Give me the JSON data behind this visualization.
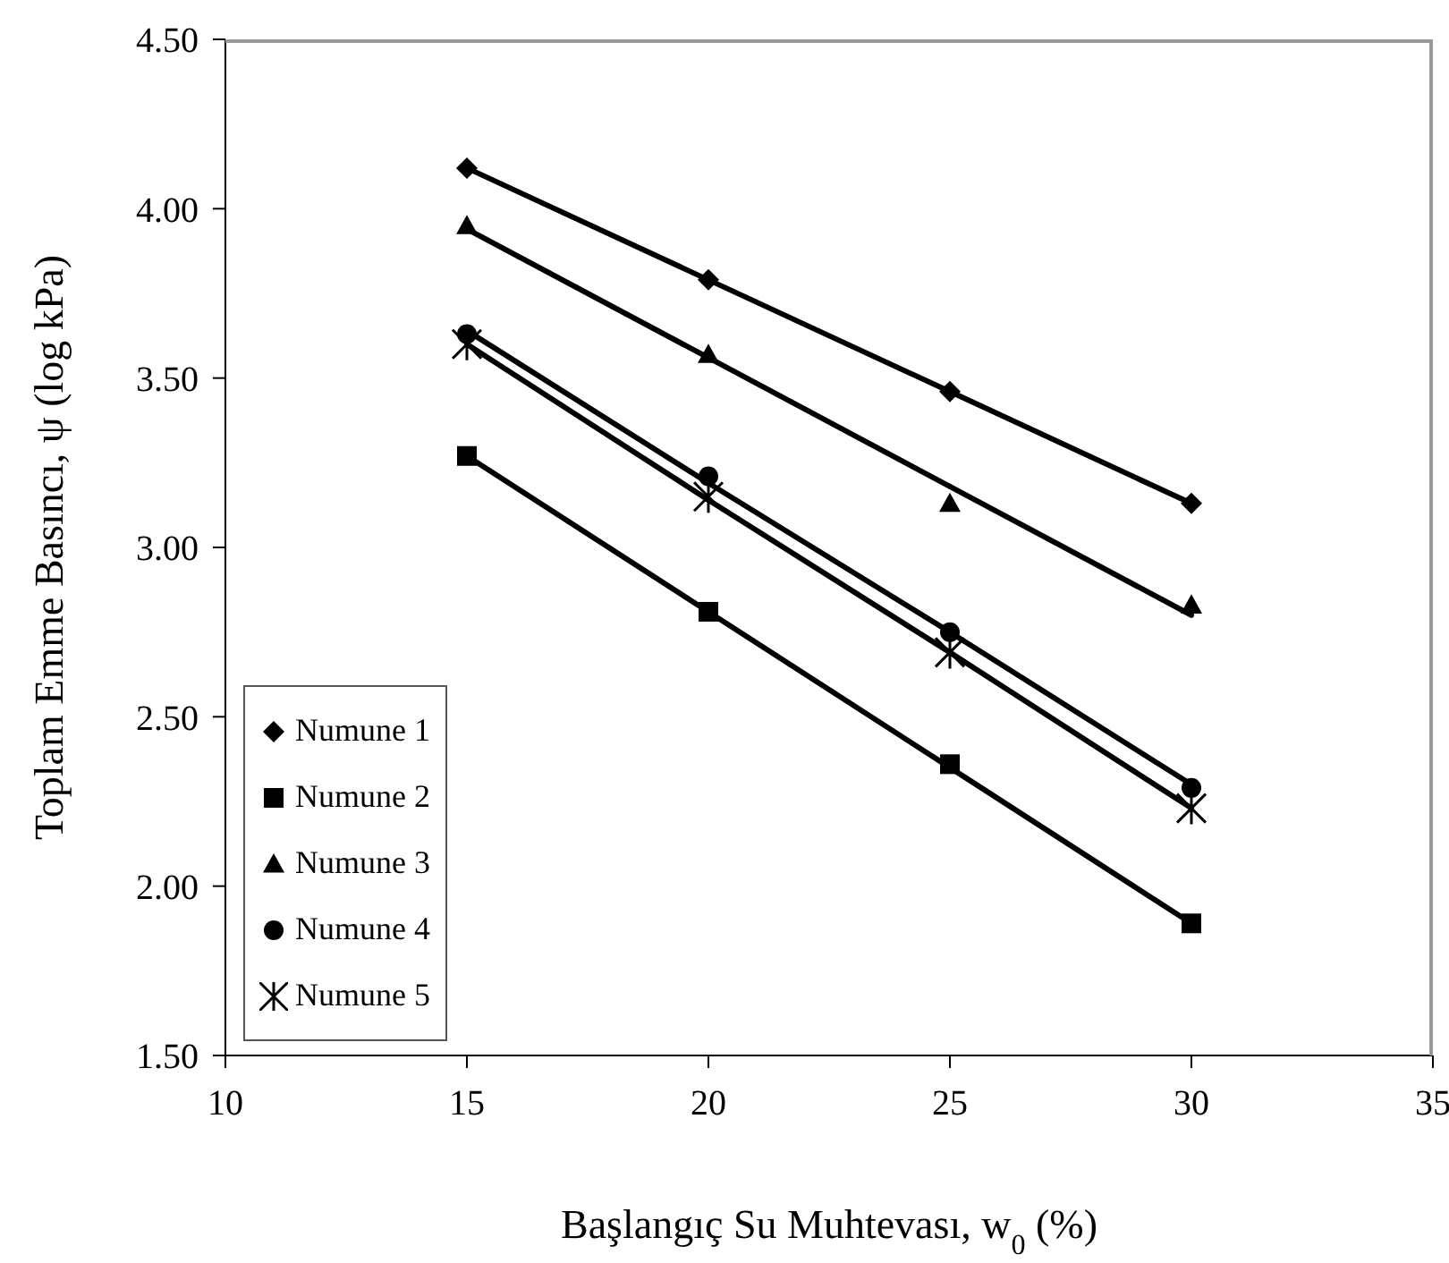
{
  "chart_data": {
    "type": "scatter",
    "xlabel": "Başlangıç Su Muhtevası, w$_{0}$ (%)",
    "ylabel": "Toplam Emme Basıncı,  ψ  (log kPa)",
    "x": [
      15,
      20,
      25,
      30
    ],
    "xlim": [
      10,
      35
    ],
    "xticks": [
      10,
      15,
      20,
      25,
      30,
      35
    ],
    "ylim": [
      1.5,
      4.5
    ],
    "yticks": [
      {
        "value": 1.5,
        "label": "1.50"
      },
      {
        "value": 2,
        "label": "2.00"
      },
      {
        "value": 2.5,
        "label": "2.50"
      },
      {
        "value": 3,
        "label": "3.00"
      },
      {
        "value": 3.5,
        "label": "3.50"
      },
      {
        "value": 4,
        "label": "4.00"
      },
      {
        "value": 4.5,
        "label": "4.50"
      }
    ],
    "grid": false,
    "legend": "bottom left",
    "series": [
      {
        "name": "Numune 1",
        "color": "#000000",
        "marker": "diamond",
        "values": [
          4.12,
          3.79,
          3.46,
          3.13
        ]
      },
      {
        "name": "Numune 2",
        "color": "#000000",
        "marker": "square",
        "values": [
          3.27,
          2.81,
          2.36,
          1.89
        ]
      },
      {
        "name": "Numune 3",
        "color": "#000000",
        "marker": "triangle",
        "values": [
          3.95,
          3.57,
          3.13,
          2.83
        ]
      },
      {
        "name": "Numune 4",
        "color": "#000000",
        "marker": "circle",
        "values": [
          3.63,
          3.21,
          2.75,
          2.29
        ]
      },
      {
        "name": "Numune 5",
        "color": "#000000",
        "marker": "cross",
        "values": [
          3.6,
          3.15,
          2.69,
          2.23
        ]
      },
      {
        "type": "line",
        "color": "#000000",
        "marker": "none",
        "values": [
          4.12,
          3.79,
          3.46,
          3.13
        ]
      },
      {
        "type": "line",
        "color": "#000000",
        "marker": "none",
        "values": [
          3.27,
          2.81,
          2.35,
          1.89
        ]
      },
      {
        "type": "line",
        "color": "#000000",
        "marker": "none",
        "values": [
          3.94,
          3.56,
          3.18,
          2.8
        ]
      },
      {
        "type": "line",
        "color": "#000000",
        "marker": "none",
        "values": [
          3.64,
          3.19,
          2.75,
          2.3
        ]
      },
      {
        "type": "line",
        "color": "#000000",
        "marker": "none",
        "values": [
          3.6,
          3.14,
          2.69,
          2.23
        ]
      }
    ]
  }
}
